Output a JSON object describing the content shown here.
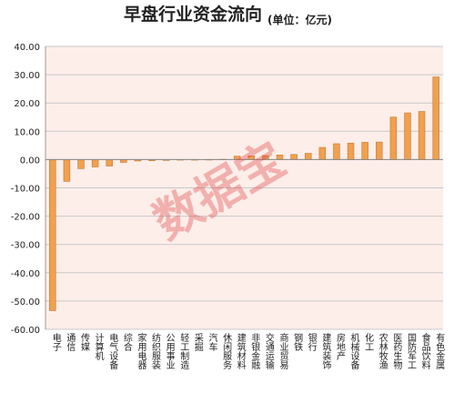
{
  "chart_data": {
    "type": "bar",
    "title": "早盘行业资金流向",
    "subtitle": "(单位：亿元)",
    "watermark": "数据宝",
    "categories": [
      "电子",
      "通信",
      "传媒",
      "计算机",
      "电气设备",
      "综合",
      "家用电器",
      "纺织服装",
      "公用事业",
      "轻工制造",
      "采掘",
      "汽车",
      "休闲服务",
      "建筑材料",
      "非银金融",
      "交通运输",
      "商业贸易",
      "钢铁",
      "银行",
      "建筑装饰",
      "房地产",
      "机械设备",
      "化工",
      "农林牧渔",
      "医药生物",
      "国防军工",
      "食品饮料",
      "有色金属"
    ],
    "values": [
      -53.4,
      -7.7,
      -3.2,
      -2.6,
      -2.3,
      -1.0,
      -0.5,
      -0.4,
      -0.3,
      -0.2,
      -0.2,
      -0.1,
      0.1,
      1.2,
      1.3,
      1.4,
      1.6,
      1.8,
      2.2,
      4.3,
      5.6,
      5.8,
      6.1,
      6.2,
      15.0,
      16.5,
      17.0,
      29.2
    ],
    "color": "#f0a050",
    "ylim": [
      -60,
      40
    ],
    "yticks": [
      {
        "value": -60,
        "label": "-60.00"
      },
      {
        "value": -50,
        "label": "-50.00"
      },
      {
        "value": -40,
        "label": "-40.00"
      },
      {
        "value": -30,
        "label": "-30.00"
      },
      {
        "value": -20,
        "label": "-20.00"
      },
      {
        "value": -10,
        "label": "-10.00"
      },
      {
        "value": 0,
        "label": "0.00"
      },
      {
        "value": 10,
        "label": "10.00"
      },
      {
        "value": 20,
        "label": "20.00"
      },
      {
        "value": 30,
        "label": "30.00"
      },
      {
        "value": 40,
        "label": "40.00"
      }
    ],
    "grid": true
  }
}
